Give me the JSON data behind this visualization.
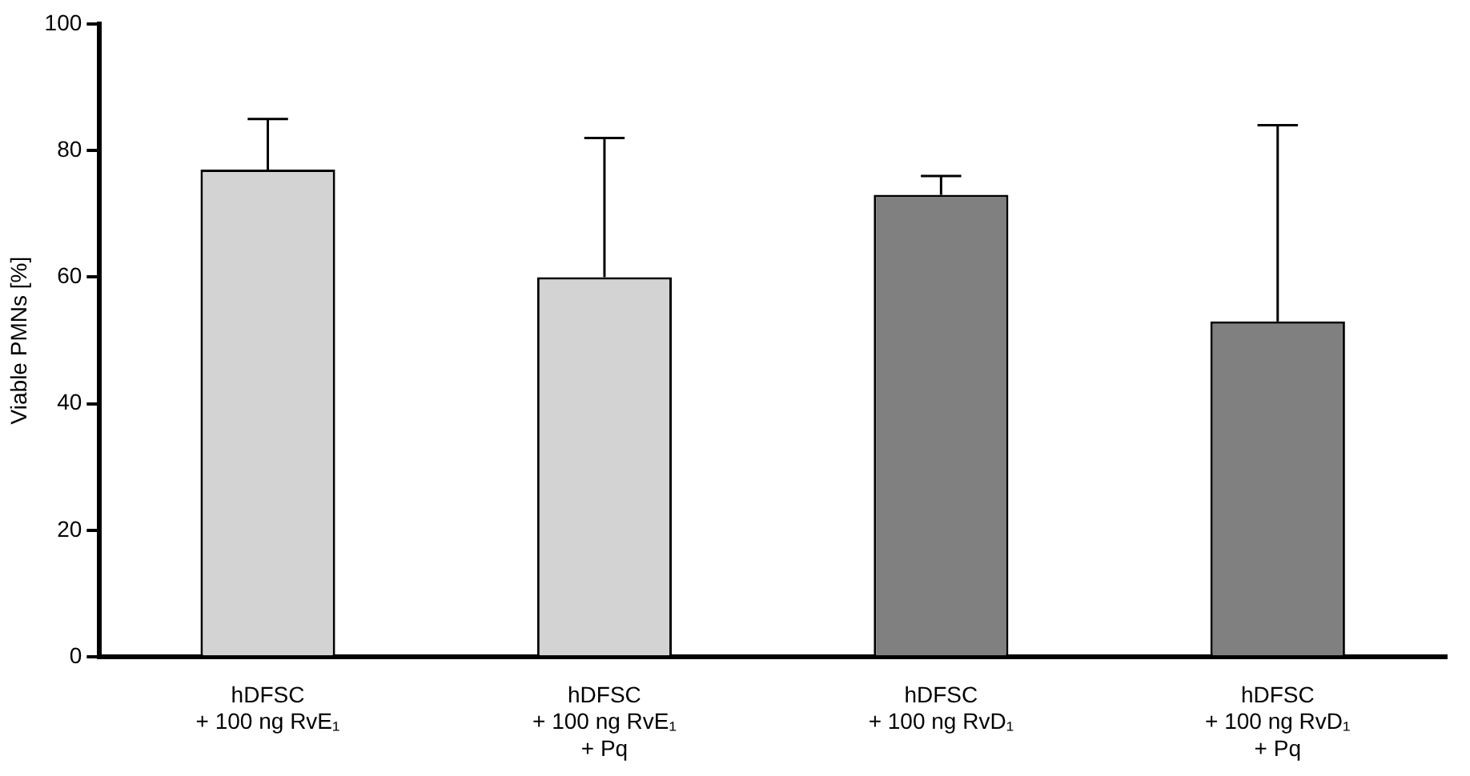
{
  "chart_data": {
    "type": "bar",
    "ylabel": "Viable PMNs [%]",
    "categories": [
      "hDFSC\n+ 100 ng RvE₁",
      "hDFSC\n+ 100 ng RvE₁\n+ Pq",
      "hDFSC\n+ 100 ng RvD₁",
      "hDFSC\n+ 100 ng RvD₁\n+ Pq"
    ],
    "values": [
      77,
      60,
      73,
      53
    ],
    "colors": [
      "#d3d3d3",
      "#d3d3d3",
      "#808080",
      "#808080"
    ],
    "errors": [
      [
        77,
        85
      ],
      [
        60,
        82
      ],
      [
        73,
        76
      ],
      [
        53,
        84
      ]
    ],
    "ylim": [
      0,
      100
    ],
    "yticks": [
      0,
      20,
      40,
      60,
      80,
      100
    ],
    "grid": false,
    "legend": false
  }
}
